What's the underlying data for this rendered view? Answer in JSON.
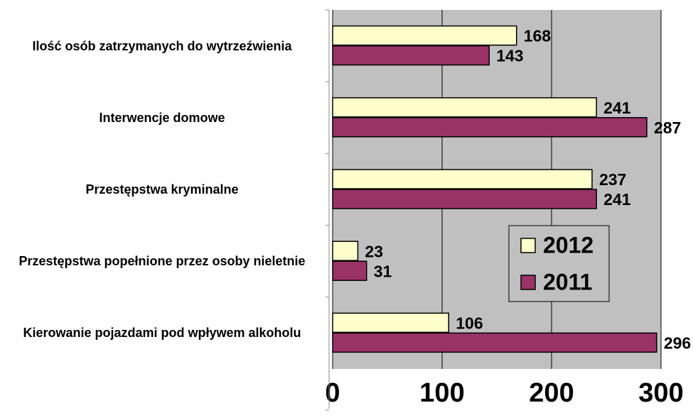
{
  "chart_data": {
    "type": "bar",
    "orientation": "horizontal",
    "categories": [
      "Ilość osób zatrzymanych do wytrzeźwienia",
      "Interwencje domowe",
      "Przestępstwa kryminalne",
      "Przestępstwa popełnione przez osoby nieletnie",
      "Kierowanie pojazdami pod wpływem alkoholu"
    ],
    "series": [
      {
        "name": "2012",
        "color": "#ffffcc",
        "values": [
          168,
          241,
          237,
          23,
          106
        ]
      },
      {
        "name": "2011",
        "color": "#993366",
        "values": [
          143,
          287,
          241,
          31,
          296
        ]
      }
    ],
    "xlim": [
      0,
      300
    ],
    "xticks": [
      0,
      100,
      200,
      300
    ],
    "grid": true,
    "legend": "right"
  }
}
